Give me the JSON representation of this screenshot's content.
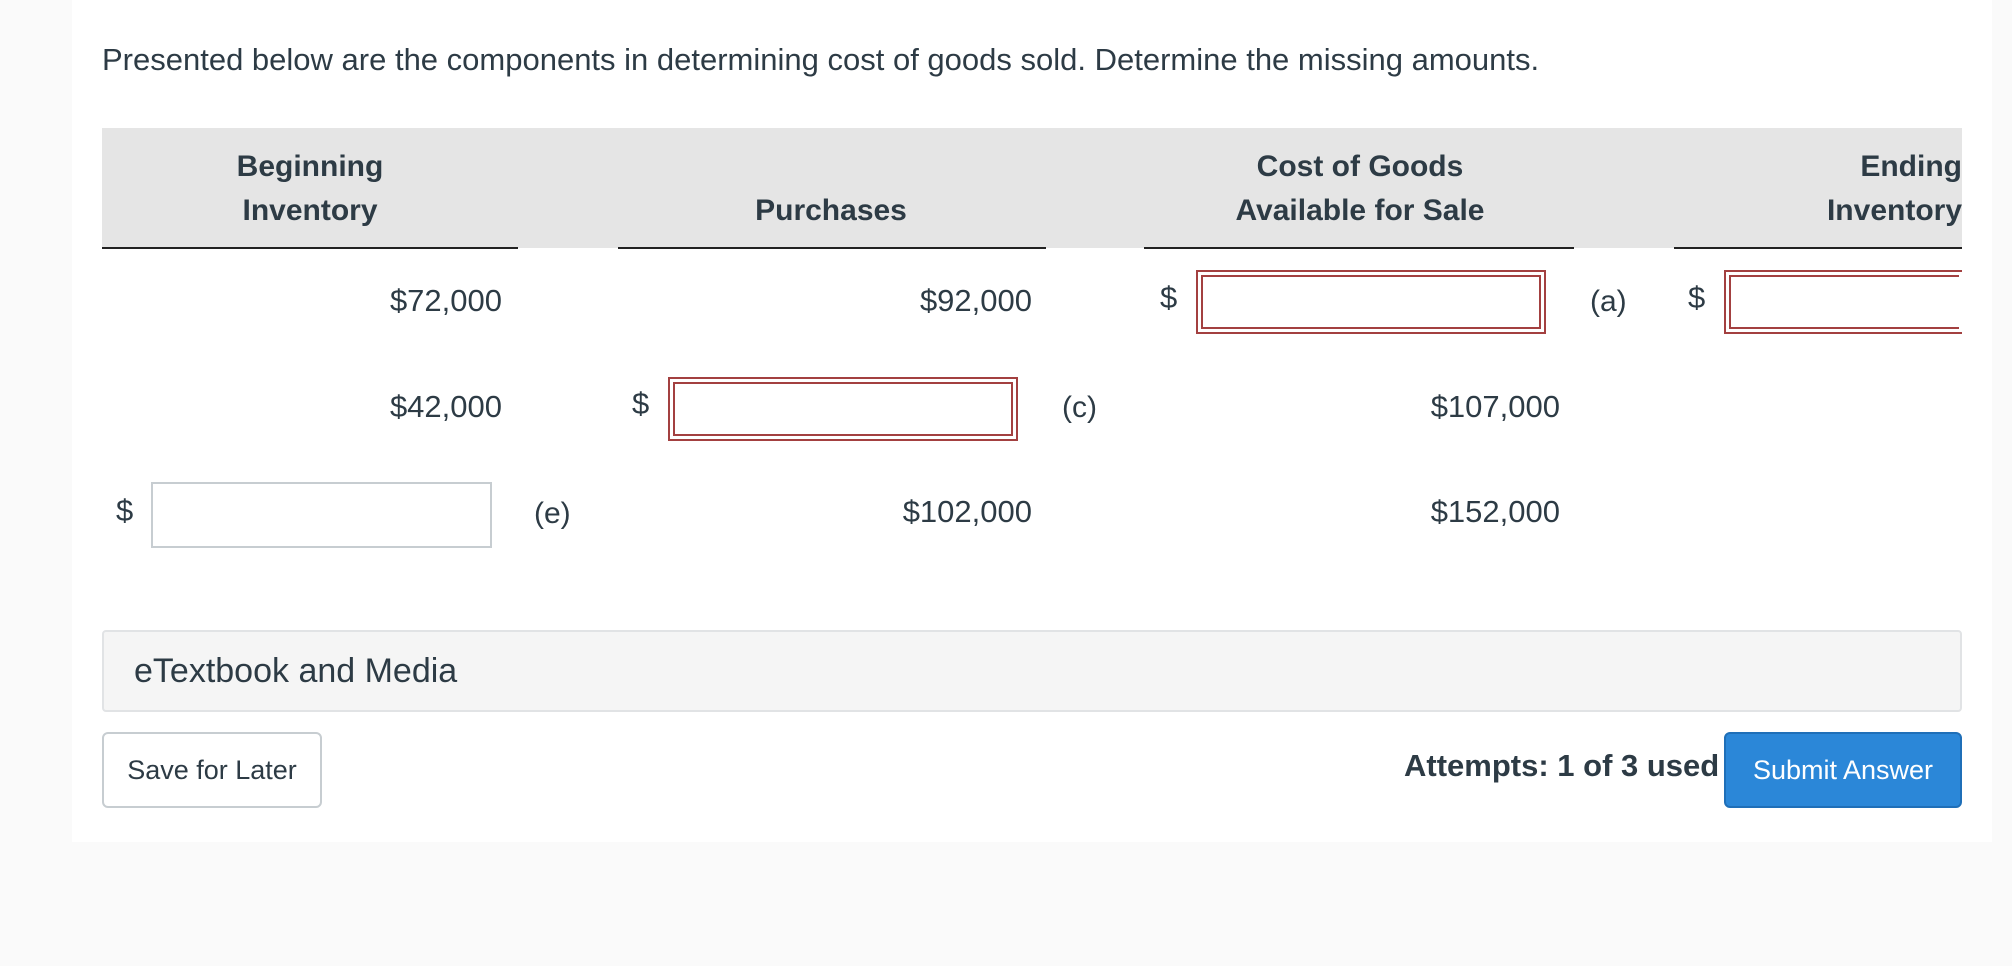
{
  "prompt": "Presented below are the components in determining cost of goods sold. Determine the missing amounts.",
  "table": {
    "headers": {
      "beginning_inventory": [
        "Beginning",
        "Inventory"
      ],
      "purchases": [
        "Purchases"
      ],
      "cogas": [
        "Cost of Goods",
        "Available for Sale"
      ],
      "ending_inventory": [
        "Ending",
        "Inventory"
      ]
    },
    "currency_symbol": "$",
    "rows": [
      {
        "beginning": "$72,000",
        "purchases": "$92,000",
        "cogas_input": "",
        "cogas_letter": "(a)",
        "ending_input": ""
      },
      {
        "beginning": "$42,000",
        "purchases_input": "",
        "purchases_letter": "(c)",
        "cogas": "$107,000"
      },
      {
        "beginning_input": "",
        "beginning_letter": "(e)",
        "purchases": "$102,000",
        "cogas": "$152,000"
      }
    ]
  },
  "media_bar": {
    "label": "eTextbook and Media"
  },
  "footer": {
    "save_label": "Save for Later",
    "attempts": "Attempts: 1 of 3 used",
    "submit_label": "Submit Answer"
  },
  "colors": {
    "error_border": "#a34040",
    "primary": "#2b87d8",
    "header_band": "#e5e5e5"
  }
}
